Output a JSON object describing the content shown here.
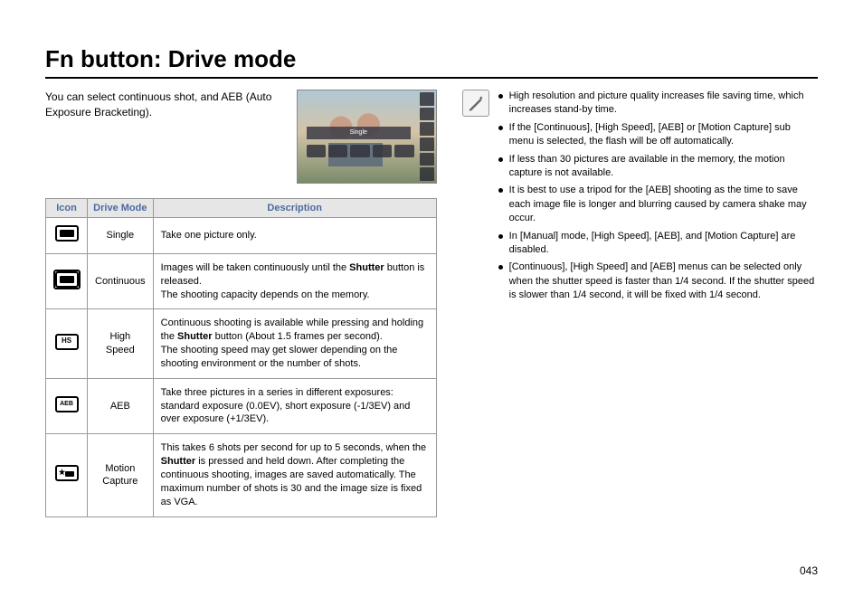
{
  "title": "Fn button: Drive mode",
  "intro": "You can select continuous shot, and AEB (Auto Exposure Bracketing).",
  "preview_label": "Single",
  "table": {
    "headers": {
      "icon": "Icon",
      "mode": "Drive Mode",
      "desc": "Description"
    },
    "rows": [
      {
        "mode": "Single",
        "desc": "Take one picture only."
      },
      {
        "mode": "Continuous",
        "desc": "Images will be taken continuously until the <b>Shutter</b> button is released.<br>The shooting capacity depends on the memory."
      },
      {
        "mode": "High Speed",
        "desc": "Continuous shooting is available while pressing and holding the <b>Shutter</b> button (About 1.5 frames per second).<br>The shooting speed may get slower depending on the shooting environment or the number of shots."
      },
      {
        "mode": "AEB",
        "desc": "Take three pictures in a series in different exposures: standard exposure (0.0EV), short exposure (-1/3EV) and over exposure (+1/3EV)."
      },
      {
        "mode": "Motion Capture",
        "desc": "This takes 6 shots per second for up to 5 seconds, when the <b>Shutter</b> is pressed and held down. After completing the continuous shooting, images are saved automatically. The maximum number of shots is 30 and the image size is fixed as VGA."
      }
    ]
  },
  "notes": [
    "High resolution and picture quality increases file saving time, which increases stand-by time.",
    "If the [Continuous], [High Speed], [AEB] or [Motion Capture] sub menu is selected, the flash will be off automatically.",
    "If less than 30 pictures are available in the memory, the motion capture is not available.",
    "It is best to use a tripod for the [AEB] shooting as the time to save each image file is longer and blurring caused by camera shake may occur.",
    "In [Manual] mode, [High Speed], [AEB], and [Motion Capture] are disabled.",
    "[Continuous], [High Speed] and [AEB] menus can be selected only when the shutter speed is faster than 1/4 second. If the shutter speed is slower than 1/4 second, it will be fixed with 1/4 second."
  ],
  "page_number": "043",
  "colors": {
    "header_bg": "#e6e6e6",
    "header_text": "#4a6aa0",
    "border": "#999999"
  }
}
